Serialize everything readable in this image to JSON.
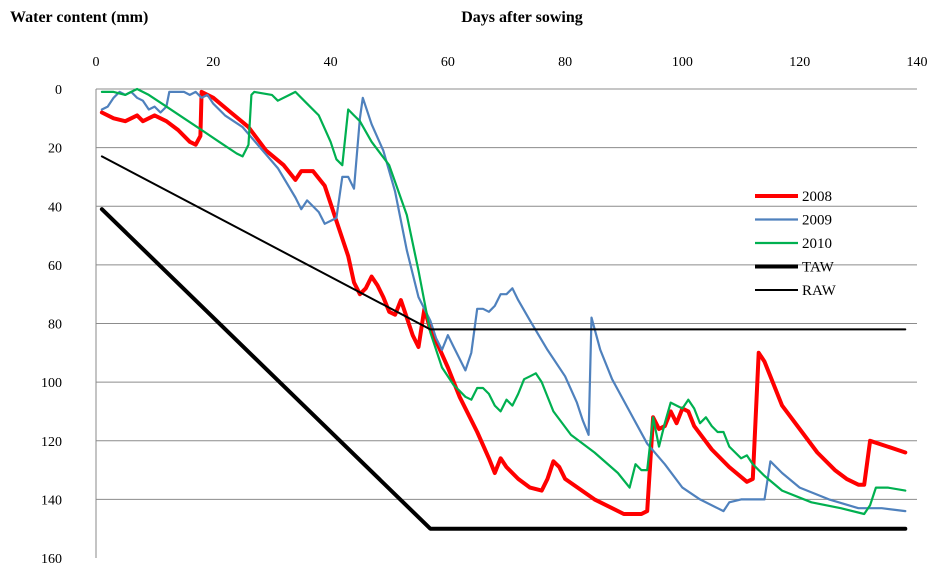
{
  "chart_data": {
    "type": "line",
    "title": "",
    "ylabel": "Water content (mm)",
    "xlabel": "Days after sowing",
    "xlim": [
      0,
      140
    ],
    "ylim": [
      0,
      160
    ],
    "y_inverted": true,
    "x_axis_position": "top",
    "grid": "horizontal",
    "legend_position": "right",
    "x_ticks": [
      0,
      20,
      40,
      60,
      80,
      100,
      120,
      140
    ],
    "y_ticks": [
      0,
      20,
      40,
      60,
      80,
      100,
      120,
      140,
      160
    ],
    "series": [
      {
        "name": "2008",
        "color": "#ff0000",
        "points": [
          [
            1,
            8
          ],
          [
            3,
            10
          ],
          [
            5,
            11
          ],
          [
            7,
            9
          ],
          [
            8,
            11
          ],
          [
            10,
            9
          ],
          [
            12,
            11
          ],
          [
            14,
            14
          ],
          [
            16,
            18
          ],
          [
            17,
            19
          ],
          [
            17.8,
            16
          ],
          [
            18,
            1
          ],
          [
            20,
            3
          ],
          [
            23,
            8
          ],
          [
            26,
            13
          ],
          [
            29,
            21
          ],
          [
            32,
            26
          ],
          [
            34,
            31
          ],
          [
            35,
            28
          ],
          [
            37,
            28
          ],
          [
            39,
            33
          ],
          [
            41,
            45
          ],
          [
            43,
            57
          ],
          [
            44,
            66
          ],
          [
            45,
            70
          ],
          [
            46,
            68
          ],
          [
            47,
            64
          ],
          [
            48,
            67
          ],
          [
            49,
            71
          ],
          [
            50,
            76
          ],
          [
            51,
            77
          ],
          [
            52,
            72
          ],
          [
            53,
            78
          ],
          [
            54,
            84
          ],
          [
            55,
            88
          ],
          [
            56,
            75
          ],
          [
            57,
            82
          ],
          [
            58,
            86
          ],
          [
            60,
            95
          ],
          [
            62,
            105
          ],
          [
            65,
            117
          ],
          [
            67,
            126
          ],
          [
            68,
            131
          ],
          [
            69,
            126
          ],
          [
            70,
            129
          ],
          [
            72,
            133
          ],
          [
            74,
            136
          ],
          [
            76,
            137
          ],
          [
            77,
            133
          ],
          [
            78,
            127
          ],
          [
            79,
            129
          ],
          [
            80,
            133
          ],
          [
            85,
            140
          ],
          [
            90,
            145
          ],
          [
            93,
            145
          ],
          [
            94,
            144
          ],
          [
            95,
            112
          ],
          [
            96,
            116
          ],
          [
            97,
            115
          ],
          [
            98,
            110
          ],
          [
            99,
            114
          ],
          [
            100,
            109
          ],
          [
            101,
            110
          ],
          [
            102,
            115
          ],
          [
            105,
            123
          ],
          [
            108,
            129
          ],
          [
            111,
            134
          ],
          [
            112,
            133
          ],
          [
            113,
            90
          ],
          [
            114,
            93
          ],
          [
            117,
            108
          ],
          [
            120,
            116
          ],
          [
            123,
            124
          ],
          [
            126,
            130
          ],
          [
            128,
            133
          ],
          [
            130,
            135
          ],
          [
            131,
            135
          ],
          [
            132,
            120
          ],
          [
            135,
            122
          ],
          [
            138,
            124
          ]
        ]
      },
      {
        "name": "2009",
        "color": "#4f81bd",
        "points": [
          [
            1,
            7
          ],
          [
            2,
            6
          ],
          [
            3,
            3
          ],
          [
            4,
            1
          ],
          [
            5,
            2
          ],
          [
            6,
            1
          ],
          [
            7,
            3
          ],
          [
            8,
            4
          ],
          [
            9,
            7
          ],
          [
            10,
            6
          ],
          [
            11,
            8
          ],
          [
            12,
            6
          ],
          [
            12.5,
            1
          ],
          [
            14,
            1
          ],
          [
            15,
            1
          ],
          [
            16,
            2
          ],
          [
            17,
            1
          ],
          [
            18,
            3
          ],
          [
            19,
            2
          ],
          [
            20,
            5
          ],
          [
            22,
            9
          ],
          [
            25,
            13
          ],
          [
            28,
            20
          ],
          [
            31,
            27
          ],
          [
            34,
            37
          ],
          [
            35,
            41
          ],
          [
            36,
            38
          ],
          [
            38,
            42
          ],
          [
            39,
            46
          ],
          [
            40,
            45
          ],
          [
            41,
            44
          ],
          [
            42,
            30
          ],
          [
            43,
            30
          ],
          [
            44,
            34
          ],
          [
            45,
            10
          ],
          [
            45.5,
            3
          ],
          [
            47,
            12
          ],
          [
            49,
            21
          ],
          [
            51,
            35
          ],
          [
            53,
            55
          ],
          [
            55,
            71
          ],
          [
            57,
            79
          ],
          [
            58,
            85
          ],
          [
            59,
            89
          ],
          [
            60,
            84
          ],
          [
            61,
            88
          ],
          [
            62,
            92
          ],
          [
            63,
            96
          ],
          [
            64,
            90
          ],
          [
            65,
            75
          ],
          [
            66,
            75
          ],
          [
            67,
            76
          ],
          [
            68,
            74
          ],
          [
            69,
            70
          ],
          [
            70,
            70
          ],
          [
            71,
            68
          ],
          [
            72,
            72
          ],
          [
            74,
            79
          ],
          [
            77,
            89
          ],
          [
            80,
            98
          ],
          [
            82,
            107
          ],
          [
            83,
            113
          ],
          [
            84,
            118
          ],
          [
            84.5,
            78
          ],
          [
            86,
            89
          ],
          [
            88,
            99
          ],
          [
            91,
            110
          ],
          [
            94,
            121
          ],
          [
            97,
            128
          ],
          [
            100,
            136
          ],
          [
            103,
            140
          ],
          [
            106,
            143
          ],
          [
            107,
            144
          ],
          [
            108,
            141
          ],
          [
            110,
            140
          ],
          [
            112,
            140
          ],
          [
            114,
            140
          ],
          [
            115,
            127
          ],
          [
            117,
            131
          ],
          [
            120,
            136
          ],
          [
            125,
            140
          ],
          [
            130,
            143
          ],
          [
            134,
            143
          ],
          [
            138,
            144
          ]
        ]
      },
      {
        "name": "2010",
        "color": "#00b050",
        "points": [
          [
            1,
            1
          ],
          [
            3,
            1
          ],
          [
            5,
            2
          ],
          [
            6,
            1
          ],
          [
            7,
            0
          ],
          [
            9,
            2
          ],
          [
            12,
            6
          ],
          [
            15,
            10
          ],
          [
            18,
            14
          ],
          [
            21,
            18
          ],
          [
            24,
            22
          ],
          [
            25,
            23
          ],
          [
            26,
            19
          ],
          [
            26.5,
            2
          ],
          [
            27,
            1
          ],
          [
            30,
            2
          ],
          [
            31,
            4
          ],
          [
            33,
            2
          ],
          [
            34,
            1
          ],
          [
            36,
            5
          ],
          [
            38,
            9
          ],
          [
            40,
            18
          ],
          [
            41,
            24
          ],
          [
            42,
            26
          ],
          [
            43,
            7
          ],
          [
            44,
            9
          ],
          [
            45,
            11
          ],
          [
            47,
            18
          ],
          [
            50,
            26
          ],
          [
            53,
            43
          ],
          [
            55,
            62
          ],
          [
            57,
            83
          ],
          [
            59,
            95
          ],
          [
            61,
            101
          ],
          [
            62,
            103
          ],
          [
            63,
            105
          ],
          [
            64,
            106
          ],
          [
            65,
            102
          ],
          [
            66,
            102
          ],
          [
            67,
            104
          ],
          [
            68,
            108
          ],
          [
            69,
            110
          ],
          [
            70,
            106
          ],
          [
            71,
            108
          ],
          [
            72,
            104
          ],
          [
            73,
            99
          ],
          [
            74,
            98
          ],
          [
            75,
            97
          ],
          [
            76,
            100
          ],
          [
            78,
            110
          ],
          [
            81,
            118
          ],
          [
            85,
            124
          ],
          [
            89,
            131
          ],
          [
            91,
            136
          ],
          [
            92,
            128
          ],
          [
            93,
            130
          ],
          [
            94,
            130
          ],
          [
            95,
            112
          ],
          [
            96,
            122
          ],
          [
            97,
            114
          ],
          [
            98,
            107
          ],
          [
            99,
            108
          ],
          [
            100,
            109
          ],
          [
            101,
            106
          ],
          [
            102,
            109
          ],
          [
            103,
            114
          ],
          [
            104,
            112
          ],
          [
            105,
            115
          ],
          [
            106,
            117
          ],
          [
            107,
            117
          ],
          [
            108,
            122
          ],
          [
            109,
            124
          ],
          [
            110,
            126
          ],
          [
            111,
            125
          ],
          [
            112,
            128
          ],
          [
            114,
            132
          ],
          [
            117,
            137
          ],
          [
            122,
            141
          ],
          [
            127,
            143
          ],
          [
            131,
            145
          ],
          [
            132,
            142
          ],
          [
            133,
            136
          ],
          [
            135,
            136
          ],
          [
            138,
            137
          ]
        ]
      },
      {
        "name": "TAW",
        "color": "#000000",
        "points": [
          [
            1,
            41
          ],
          [
            57,
            150
          ],
          [
            138,
            150
          ]
        ]
      },
      {
        "name": "RAW",
        "color": "#000000",
        "points": [
          [
            1,
            23
          ],
          [
            57,
            82
          ],
          [
            138,
            82
          ]
        ]
      }
    ]
  }
}
